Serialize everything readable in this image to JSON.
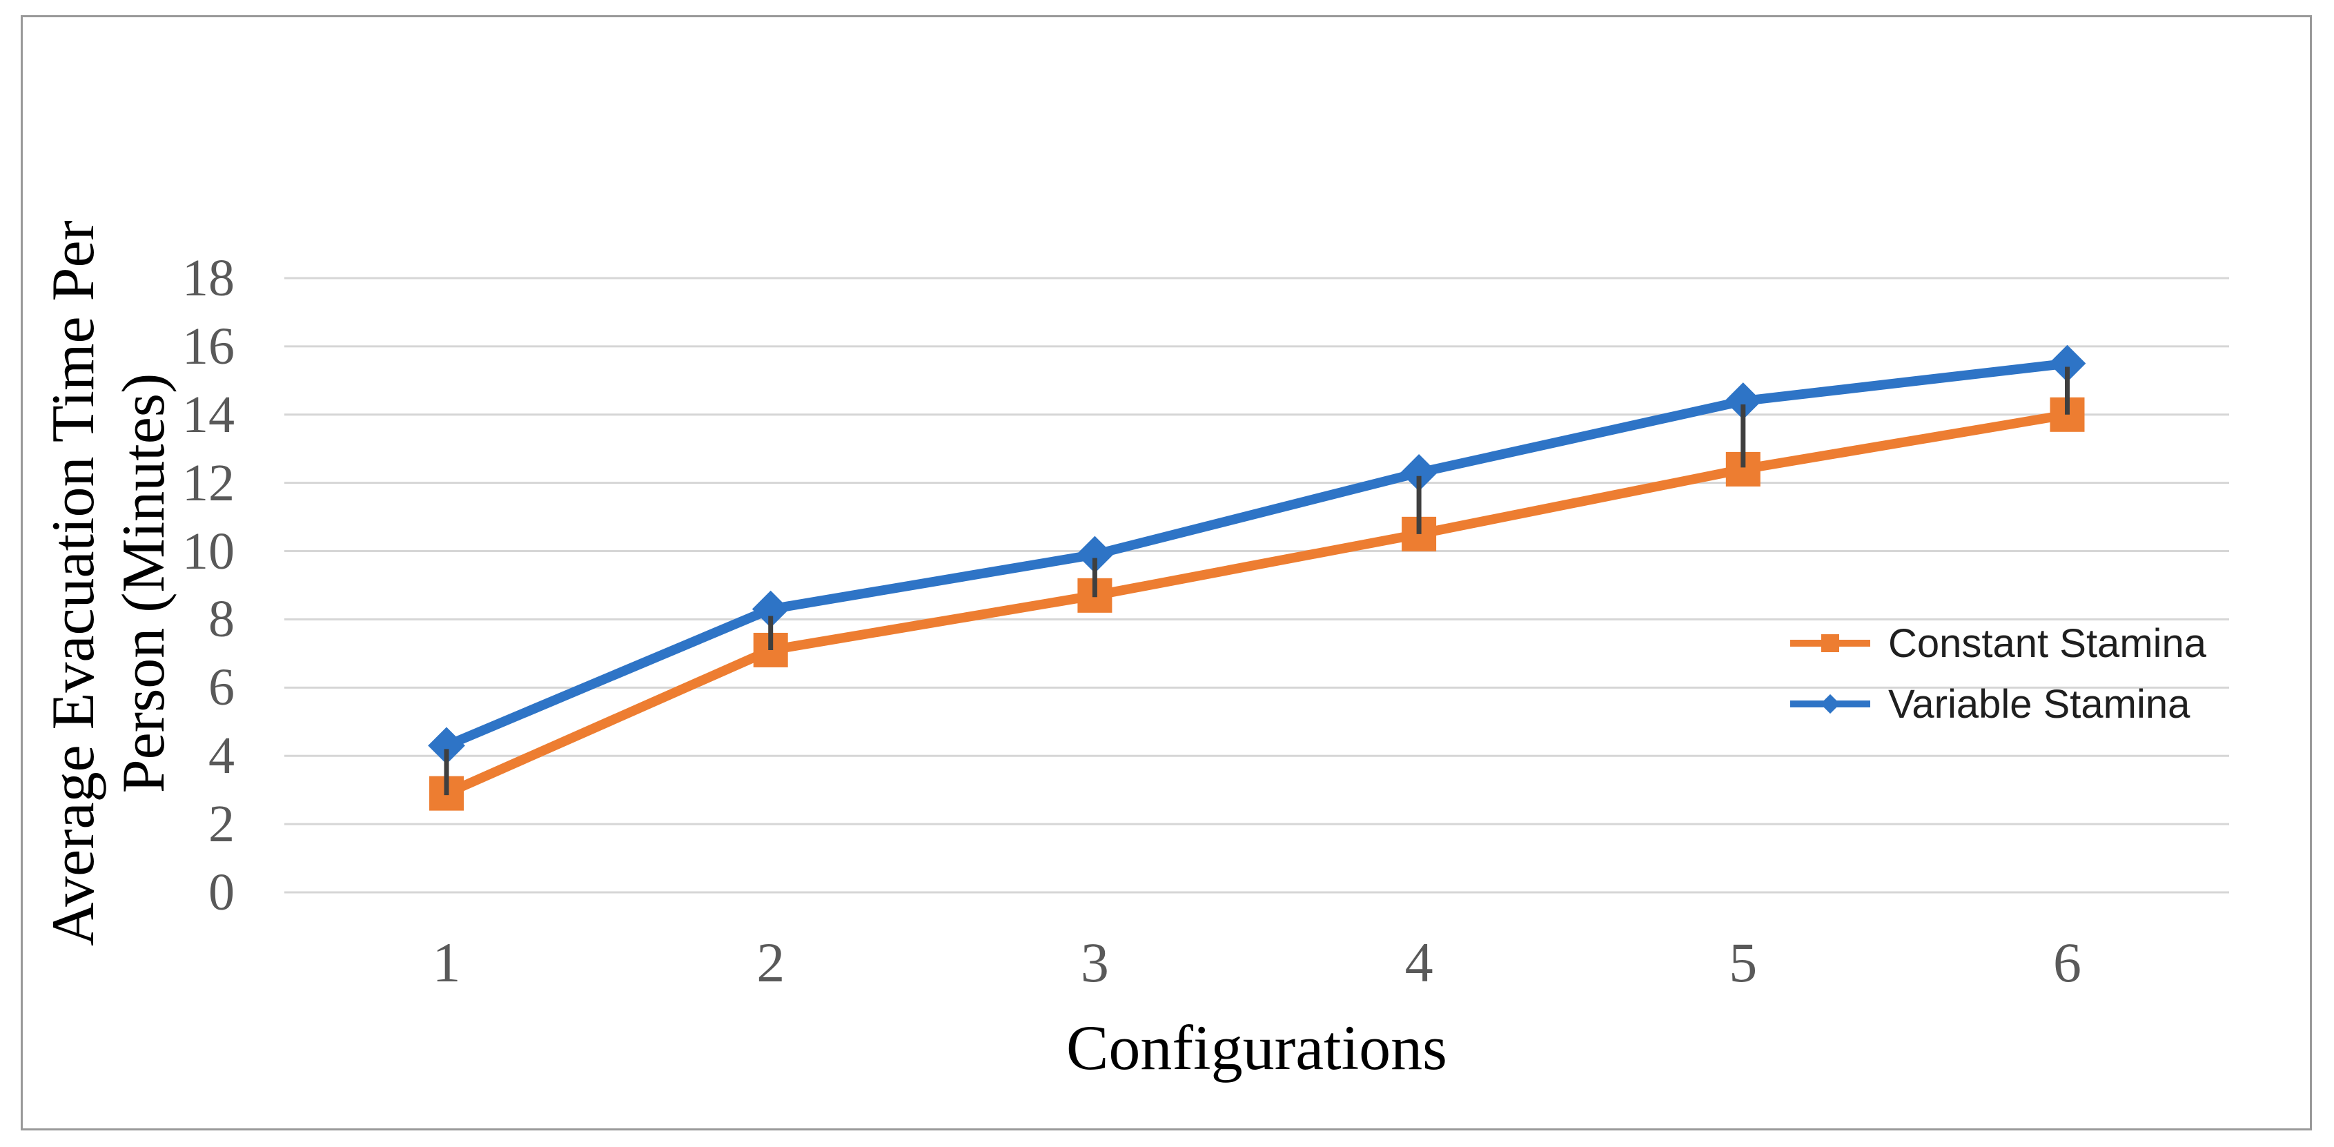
{
  "chart_data": {
    "type": "line",
    "title": "",
    "xlabel": "Configurations",
    "ylabel": "Average Evacuation Time Per Person (Minutes)",
    "ylabel_line1": "Average Evacuation Time Per",
    "ylabel_line2": "Person (Minutes)",
    "categories": [
      "1",
      "2",
      "3",
      "4",
      "5",
      "6"
    ],
    "y_ticks": [
      0,
      2,
      4,
      6,
      8,
      10,
      12,
      14,
      16,
      18
    ],
    "ylim": [
      0,
      18
    ],
    "grid": "horizontal-only",
    "legend_position": "inside-right",
    "series": [
      {
        "name": "Constant Stamina",
        "marker": "square",
        "color": "#ED7D31",
        "values": [
          2.9,
          7.1,
          8.7,
          10.5,
          12.4,
          14.0
        ]
      },
      {
        "name": "Variable Stamina",
        "marker": "diamond",
        "color": "#2E74C6",
        "values": [
          4.3,
          8.3,
          9.9,
          12.3,
          14.4,
          15.5
        ]
      }
    ],
    "error_bars": {
      "color": "#3F3F3F",
      "ranges": [
        {
          "x": "1",
          "top": 4.2,
          "bottom": 2.85
        },
        {
          "x": "2",
          "top": 8.1,
          "bottom": 7.1
        },
        {
          "x": "3",
          "top": 9.8,
          "bottom": 8.65
        },
        {
          "x": "4",
          "top": 12.2,
          "bottom": 10.5
        },
        {
          "x": "5",
          "top": 14.3,
          "bottom": 12.45
        },
        {
          "x": "6",
          "top": 15.4,
          "bottom": 14.0
        }
      ]
    },
    "colors": {
      "gridline": "#D6D6D6",
      "tick_text": "#595959",
      "axis_title_text": "#000000",
      "legend_text": "#1F1F1F",
      "border": "#999999",
      "background": "#FFFFFF"
    }
  }
}
